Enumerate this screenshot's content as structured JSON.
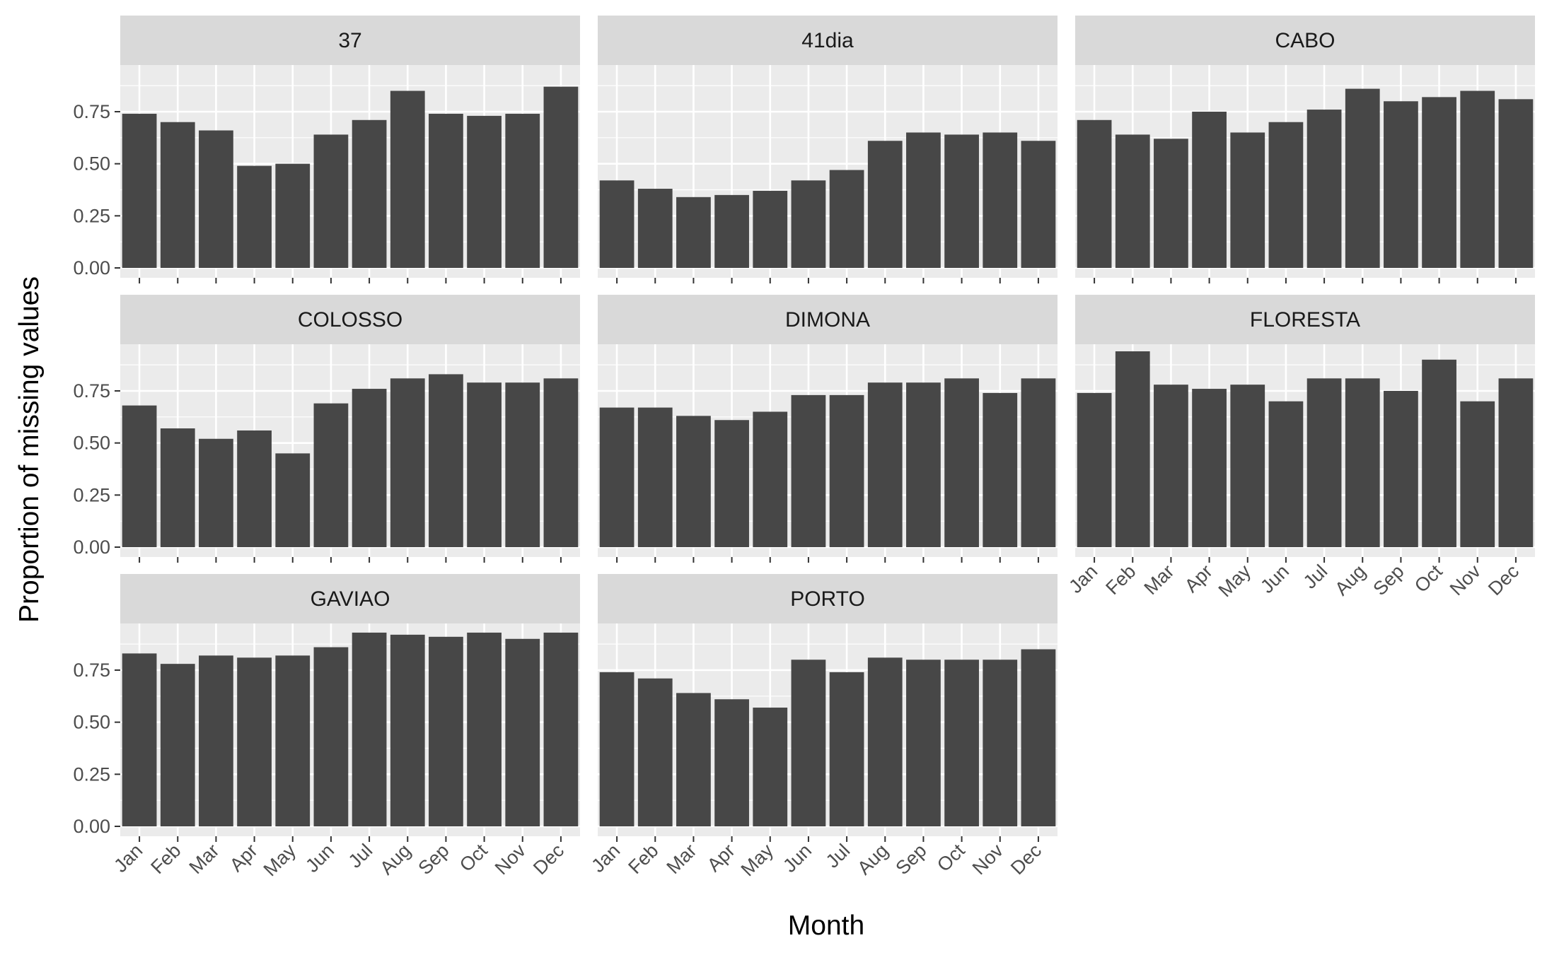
{
  "chart_data": {
    "type": "bar",
    "layout": "facet-wrap-3-columns",
    "xlabel": "Month",
    "ylabel": "Proportion of missing values",
    "categories": [
      "Jan",
      "Feb",
      "Mar",
      "Apr",
      "May",
      "Jun",
      "Jul",
      "Aug",
      "Sep",
      "Oct",
      "Nov",
      "Dec"
    ],
    "ylim": [
      0,
      1
    ],
    "yticks": [
      "0.00",
      "0.25",
      "0.50",
      "0.75"
    ],
    "grid": true,
    "bar_color": "#474747",
    "panel_background": "#ebebeb",
    "strip_background": "#d9d9d9",
    "panels": [
      {
        "name": "37",
        "values": [
          0.74,
          0.7,
          0.66,
          0.49,
          0.5,
          0.64,
          0.71,
          0.85,
          0.74,
          0.73,
          0.74,
          0.87
        ]
      },
      {
        "name": "41dia",
        "values": [
          0.42,
          0.38,
          0.34,
          0.35,
          0.37,
          0.42,
          0.47,
          0.61,
          0.65,
          0.64,
          0.65,
          0.61
        ]
      },
      {
        "name": "CABO",
        "values": [
          0.71,
          0.64,
          0.62,
          0.75,
          0.65,
          0.7,
          0.76,
          0.86,
          0.8,
          0.82,
          0.85,
          0.81
        ]
      },
      {
        "name": "COLOSSO",
        "values": [
          0.68,
          0.57,
          0.52,
          0.56,
          0.45,
          0.69,
          0.76,
          0.81,
          0.83,
          0.79,
          0.79,
          0.81
        ]
      },
      {
        "name": "DIMONA",
        "values": [
          0.67,
          0.67,
          0.63,
          0.61,
          0.65,
          0.73,
          0.73,
          0.79,
          0.79,
          0.81,
          0.74,
          0.81
        ]
      },
      {
        "name": "FLORESTA",
        "values": [
          0.74,
          0.94,
          0.78,
          0.76,
          0.78,
          0.7,
          0.81,
          0.81,
          0.75,
          0.9,
          0.7,
          0.81
        ]
      },
      {
        "name": "GAVIAO",
        "values": [
          0.83,
          0.78,
          0.82,
          0.81,
          0.82,
          0.86,
          0.93,
          0.92,
          0.91,
          0.93,
          0.9,
          0.93
        ]
      },
      {
        "name": "PORTO",
        "values": [
          0.74,
          0.71,
          0.64,
          0.61,
          0.57,
          0.8,
          0.74,
          0.81,
          0.8,
          0.8,
          0.8,
          0.85
        ]
      }
    ]
  }
}
